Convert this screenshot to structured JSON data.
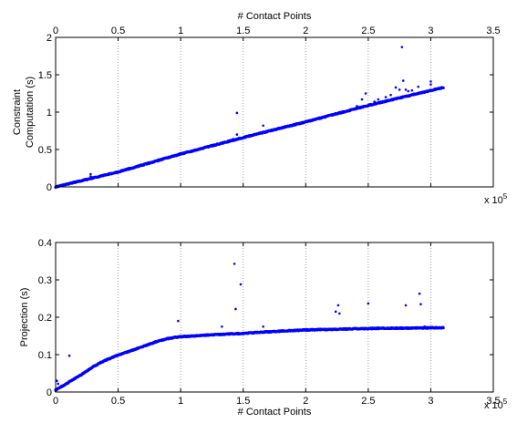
{
  "chart_data": [
    {
      "type": "scatter",
      "xlabel": "# Contact Points",
      "ylabel": [
        "Constraint",
        "Computation (s)"
      ],
      "xlim": [
        0,
        350000
      ],
      "ylim": [
        0,
        2
      ],
      "x_ticks": [
        0,
        50000,
        100000,
        150000,
        200000,
        250000,
        300000,
        350000
      ],
      "x_tick_labels": [
        "0",
        "0.5",
        "1",
        "1.5",
        "2",
        "2.5",
        "3",
        "3.5"
      ],
      "y_ticks": [
        0,
        0.5,
        1,
        1.5,
        2
      ],
      "y_tick_labels": [
        "0",
        "0.5",
        "1",
        "1.5",
        "2"
      ],
      "x_exponent_label": "x 10",
      "x_exponent_power": "5",
      "xgrid": true,
      "ygrid": false,
      "color": "#0000ff",
      "series": [
        {
          "trend": [
            [
              0,
              0.0
            ],
            [
              50000,
              0.2
            ],
            [
              100000,
              0.44
            ],
            [
              150000,
              0.66
            ],
            [
              200000,
              0.87
            ],
            [
              250000,
              1.09
            ],
            [
              310000,
              1.33
            ]
          ],
          "outliers": [
            [
              28000,
              0.17
            ],
            [
              28000,
              0.14
            ],
            [
              142000,
              0.64
            ],
            [
              145000,
              0.7
            ],
            [
              145000,
              0.99
            ],
            [
              166000,
              0.82
            ],
            [
              228000,
              1.0
            ],
            [
              241000,
              1.08
            ],
            [
              245000,
              1.17
            ],
            [
              248000,
              1.25
            ],
            [
              255000,
              1.14
            ],
            [
              258000,
              1.17
            ],
            [
              264000,
              1.2
            ],
            [
              268000,
              1.23
            ],
            [
              272000,
              1.33
            ],
            [
              275000,
              1.3
            ],
            [
              277000,
              1.87
            ],
            [
              278000,
              1.42
            ],
            [
              280000,
              1.3
            ],
            [
              282000,
              1.28
            ],
            [
              285000,
              1.29
            ],
            [
              290000,
              1.34
            ],
            [
              300000,
              1.37
            ],
            [
              300000,
              1.41
            ]
          ]
        }
      ]
    },
    {
      "type": "scatter",
      "xlabel": "# Contact Points",
      "ylabel": [
        "Projection (s)"
      ],
      "xlim": [
        0,
        350000
      ],
      "ylim": [
        0,
        0.4
      ],
      "x_ticks": [
        0,
        50000,
        100000,
        150000,
        200000,
        250000,
        300000,
        350000
      ],
      "x_tick_labels": [
        "0",
        "0.5",
        "1",
        "1.5",
        "2",
        "2.5",
        "3",
        "3.5"
      ],
      "y_ticks": [
        0,
        0.1,
        0.2,
        0.3,
        0.4
      ],
      "y_tick_labels": [
        "0",
        "0.1",
        "0.2",
        "0.3",
        "0.4"
      ],
      "x_exponent_label": "x 10",
      "x_exponent_power": "5",
      "xgrid": true,
      "ygrid": false,
      "color": "#0000ff",
      "series": [
        {
          "trend": [
            [
              0,
              0.005
            ],
            [
              5000,
              0.015
            ],
            [
              10000,
              0.025
            ],
            [
              20000,
              0.045
            ],
            [
              30000,
              0.068
            ],
            [
              40000,
              0.085
            ],
            [
              50000,
              0.099
            ],
            [
              60000,
              0.11
            ],
            [
              70000,
              0.122
            ],
            [
              80000,
              0.134
            ],
            [
              90000,
              0.143
            ],
            [
              100000,
              0.148
            ],
            [
              125000,
              0.153
            ],
            [
              150000,
              0.157
            ],
            [
              175000,
              0.162
            ],
            [
              200000,
              0.166
            ],
            [
              250000,
              0.17
            ],
            [
              310000,
              0.172
            ]
          ],
          "outliers": [
            [
              1000,
              0.03
            ],
            [
              2000,
              0.022
            ],
            [
              11000,
              0.097
            ],
            [
              98000,
              0.19
            ],
            [
              133000,
              0.175
            ],
            [
              143000,
              0.343
            ],
            [
              144000,
              0.222
            ],
            [
              148000,
              0.288
            ],
            [
              166000,
              0.175
            ],
            [
              224000,
              0.215
            ],
            [
              226000,
              0.232
            ],
            [
              227000,
              0.21
            ],
            [
              250000,
              0.237
            ],
            [
              280000,
              0.232
            ],
            [
              291000,
              0.263
            ],
            [
              292000,
              0.235
            ],
            [
              295000,
              0.175
            ]
          ]
        }
      ]
    }
  ]
}
